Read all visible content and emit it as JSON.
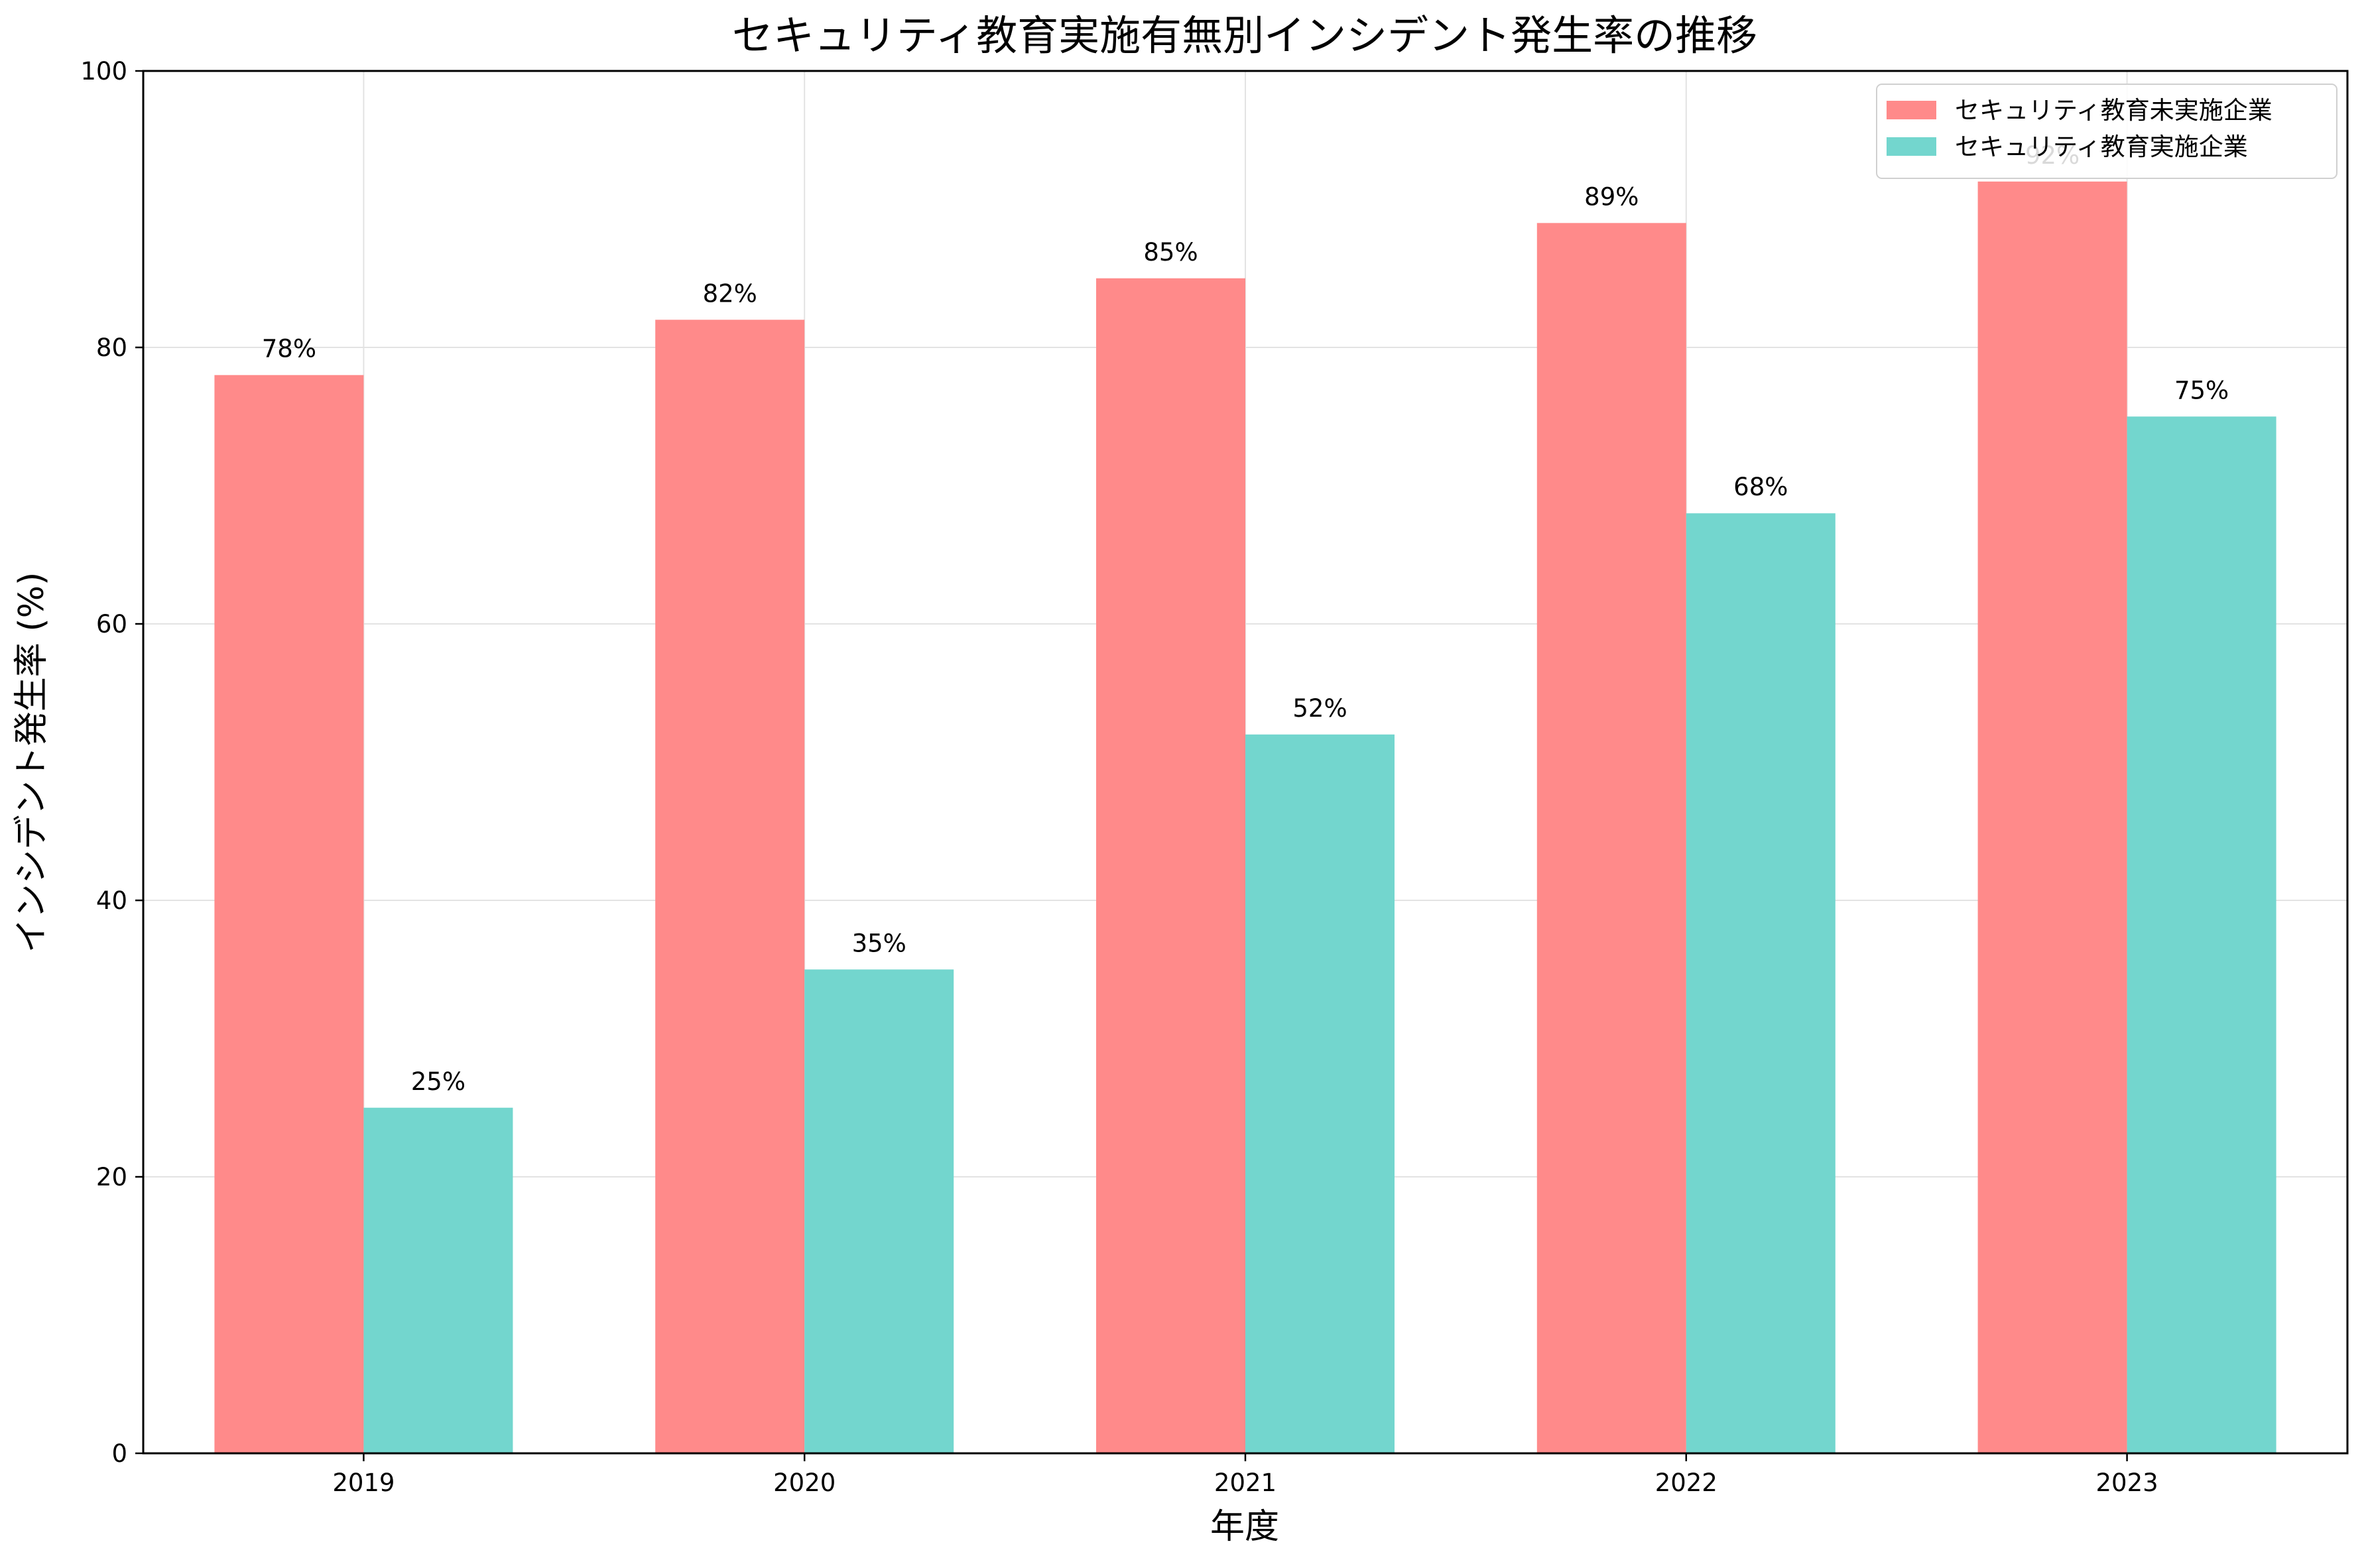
{
  "chart_data": {
    "type": "bar",
    "title": "セキュリティ教育実施有無別インシデント発生率の推移",
    "xlabel": "年度",
    "ylabel": "インシデント発生率 (%)",
    "categories": [
      "2019",
      "2020",
      "2021",
      "2022",
      "2023"
    ],
    "ylim": [
      0,
      100
    ],
    "yticks": [
      0,
      20,
      40,
      60,
      80,
      100
    ],
    "grid": true,
    "legend_position": "top-right",
    "series": [
      {
        "name": "セキュリティ教育未実施企業",
        "color": "#ff8a8a",
        "values": [
          78,
          82,
          85,
          89,
          92
        ],
        "labels": [
          "78%",
          "82%",
          "85%",
          "89%",
          "92%"
        ]
      },
      {
        "name": "セキュリティ教育実施企業",
        "color": "#73d6ce",
        "values": [
          25,
          35,
          52,
          68,
          75
        ],
        "labels": [
          "25%",
          "35%",
          "52%",
          "68%",
          "75%"
        ]
      }
    ]
  }
}
